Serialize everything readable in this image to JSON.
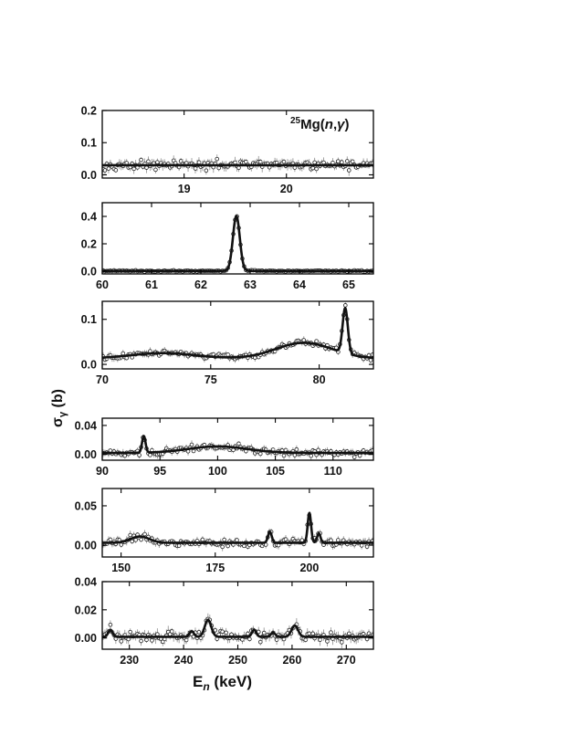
{
  "figure": {
    "annotation": {
      "prefix": "25",
      "main": "Mg(",
      "italic1": "n",
      "comma": ",",
      "italic2": "γ",
      "close": ")"
    },
    "ylabel": {
      "main": "σ",
      "sub": "γ",
      "unit": " (b)"
    },
    "xlabel": {
      "main": "E",
      "sub": "n",
      "unit": " (keV)"
    }
  },
  "chart_data": [
    {
      "type": "scatter",
      "panel": 1,
      "xlim": [
        18.2,
        20.85
      ],
      "ylim": [
        -0.01,
        0.2
      ],
      "xticks": [
        19,
        20
      ],
      "xtick_labels": [
        "19",
        "20"
      ],
      "yticks": [
        0.0,
        0.1,
        0.2
      ],
      "ytick_labels": [
        "0.0",
        "0.1",
        "0.2"
      ],
      "baseline": 0.03,
      "noise": 0.012,
      "peaks": []
    },
    {
      "type": "scatter",
      "panel": 2,
      "xlim": [
        60,
        65.5
      ],
      "ylim": [
        -0.02,
        0.5
      ],
      "xticks": [
        60,
        61,
        62,
        63,
        64,
        65
      ],
      "xtick_labels": [
        "60",
        "61",
        "62",
        "63",
        "64",
        "65"
      ],
      "yticks": [
        0.0,
        0.2,
        0.4
      ],
      "ytick_labels": [
        "0.0",
        "0.2",
        "0.4"
      ],
      "baseline": 0.002,
      "noise": 0.004,
      "peaks": [
        {
          "x": 62.72,
          "height": 0.4,
          "width": 0.07
        }
      ]
    },
    {
      "type": "scatter",
      "panel": 3,
      "xlim": [
        70,
        82.5
      ],
      "ylim": [
        -0.01,
        0.14
      ],
      "xticks": [
        70,
        75,
        80
      ],
      "xtick_labels": [
        "70",
        "75",
        "80"
      ],
      "yticks": [
        0.0,
        0.1
      ],
      "ytick_labels": [
        "0.0",
        "0.1"
      ],
      "baseline": 0.013,
      "noise": 0.006,
      "peaks": [
        {
          "x": 72.8,
          "height": 0.012,
          "width": 1.5
        },
        {
          "x": 79.3,
          "height": 0.035,
          "width": 1.3
        },
        {
          "x": 81.2,
          "height": 0.1,
          "width": 0.12
        }
      ]
    },
    {
      "type": "scatter",
      "panel": 4,
      "xlim": [
        90,
        113.5
      ],
      "ylim": [
        -0.008,
        0.05
      ],
      "xticks": [
        90,
        95,
        100,
        105,
        110
      ],
      "xtick_labels": [
        "90",
        "95",
        "100",
        "105",
        "110"
      ],
      "yticks": [
        0.0,
        0.04
      ],
      "ytick_labels": [
        "0.00",
        "0.04"
      ],
      "baseline": 0.002,
      "noise": 0.004,
      "peaks": [
        {
          "x": 93.6,
          "height": 0.023,
          "width": 0.15
        },
        {
          "x": 100.0,
          "height": 0.009,
          "width": 2.6
        }
      ]
    },
    {
      "type": "scatter",
      "panel": 5,
      "xlim": [
        145,
        217
      ],
      "ylim": [
        -0.015,
        0.072
      ],
      "xticks": [
        150,
        175,
        200
      ],
      "xtick_labels": [
        "150",
        "175",
        "200"
      ],
      "yticks": [
        0.0,
        0.05
      ],
      "ytick_labels": [
        "0.00",
        "0.05"
      ],
      "baseline": 0.003,
      "noise": 0.004,
      "peaks": [
        {
          "x": 155.0,
          "height": 0.008,
          "width": 2.5
        },
        {
          "x": 189.5,
          "height": 0.014,
          "width": 0.5
        },
        {
          "x": 200.0,
          "height": 0.038,
          "width": 0.45
        },
        {
          "x": 202.5,
          "height": 0.012,
          "width": 0.45
        }
      ]
    },
    {
      "type": "scatter",
      "panel": 6,
      "xlim": [
        225,
        275
      ],
      "ylim": [
        -0.008,
        0.04
      ],
      "xticks": [
        230,
        240,
        250,
        260,
        270
      ],
      "xtick_labels": [
        "230",
        "240",
        "250",
        "260",
        "270"
      ],
      "yticks": [
        0.0,
        0.02,
        0.04
      ],
      "ytick_labels": [
        "0.00",
        "0.02",
        "0.04"
      ],
      "baseline": 0.0008,
      "noise": 0.003,
      "peaks": [
        {
          "x": 226.5,
          "height": 0.005,
          "width": 0.4
        },
        {
          "x": 241.5,
          "height": 0.004,
          "width": 0.4
        },
        {
          "x": 244.5,
          "height": 0.012,
          "width": 0.6
        },
        {
          "x": 253.0,
          "height": 0.005,
          "width": 0.4
        },
        {
          "x": 256.5,
          "height": 0.003,
          "width": 0.4
        },
        {
          "x": 260.5,
          "height": 0.008,
          "width": 0.6
        }
      ]
    }
  ]
}
